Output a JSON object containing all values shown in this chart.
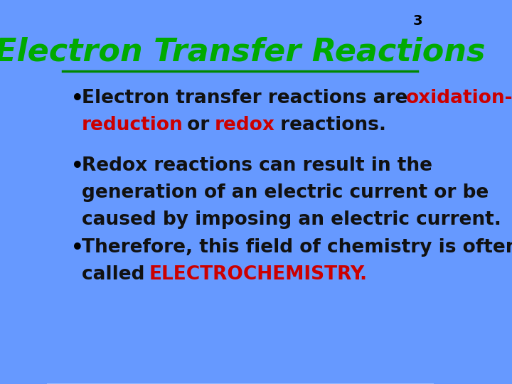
{
  "title": "Electron Transfer Reactions",
  "title_color": "#00AA00",
  "title_fontsize": 32,
  "slide_number": "3",
  "slide_number_color": "#000000",
  "slide_number_fontsize": 14,
  "bg_color_top": "#6699FF",
  "bg_color_bottom": "#CCDDFF",
  "line_color": "#008800",
  "bullet_color": "#000000",
  "red_color": "#CC0000",
  "black_color": "#111111",
  "bullet_fontsize": 19,
  "electrochemistry_fontsize": 22,
  "bullets": [
    {
      "lines": [
        [
          {
            "text": "Electron transfer reactions are ",
            "color": "#111111",
            "bold": true,
            "italic": false
          },
          {
            "text": "oxidation-",
            "color": "#CC0000",
            "bold": true,
            "italic": false
          }
        ],
        [
          {
            "text": "reduction",
            "color": "#CC0000",
            "bold": true,
            "italic": false
          },
          {
            "text": " or ",
            "color": "#111111",
            "bold": true,
            "italic": false
          },
          {
            "text": "redox",
            "color": "#CC0000",
            "bold": true,
            "italic": false
          },
          {
            "text": " reactions.",
            "color": "#111111",
            "bold": true,
            "italic": false
          }
        ]
      ]
    },
    {
      "lines": [
        [
          {
            "text": "Redox reactions can result in the",
            "color": "#111111",
            "bold": true,
            "italic": false
          }
        ],
        [
          {
            "text": "generation of an electric current or be",
            "color": "#111111",
            "bold": true,
            "italic": false
          }
        ],
        [
          {
            "text": "caused by imposing an electric current.",
            "color": "#111111",
            "bold": true,
            "italic": false
          }
        ]
      ]
    },
    {
      "lines": [
        [
          {
            "text": "Therefore, this field of chemistry is often",
            "color": "#111111",
            "bold": true,
            "italic": false
          }
        ],
        [
          {
            "text": "called ",
            "color": "#111111",
            "bold": true,
            "italic": false
          },
          {
            "text": "ELECTROCHEMISTRY",
            "color": "#CC0000",
            "bold": true,
            "italic": false
          },
          {
            "text": ".",
            "color": "#CC0000",
            "bold": true,
            "italic": false
          }
        ]
      ]
    }
  ]
}
